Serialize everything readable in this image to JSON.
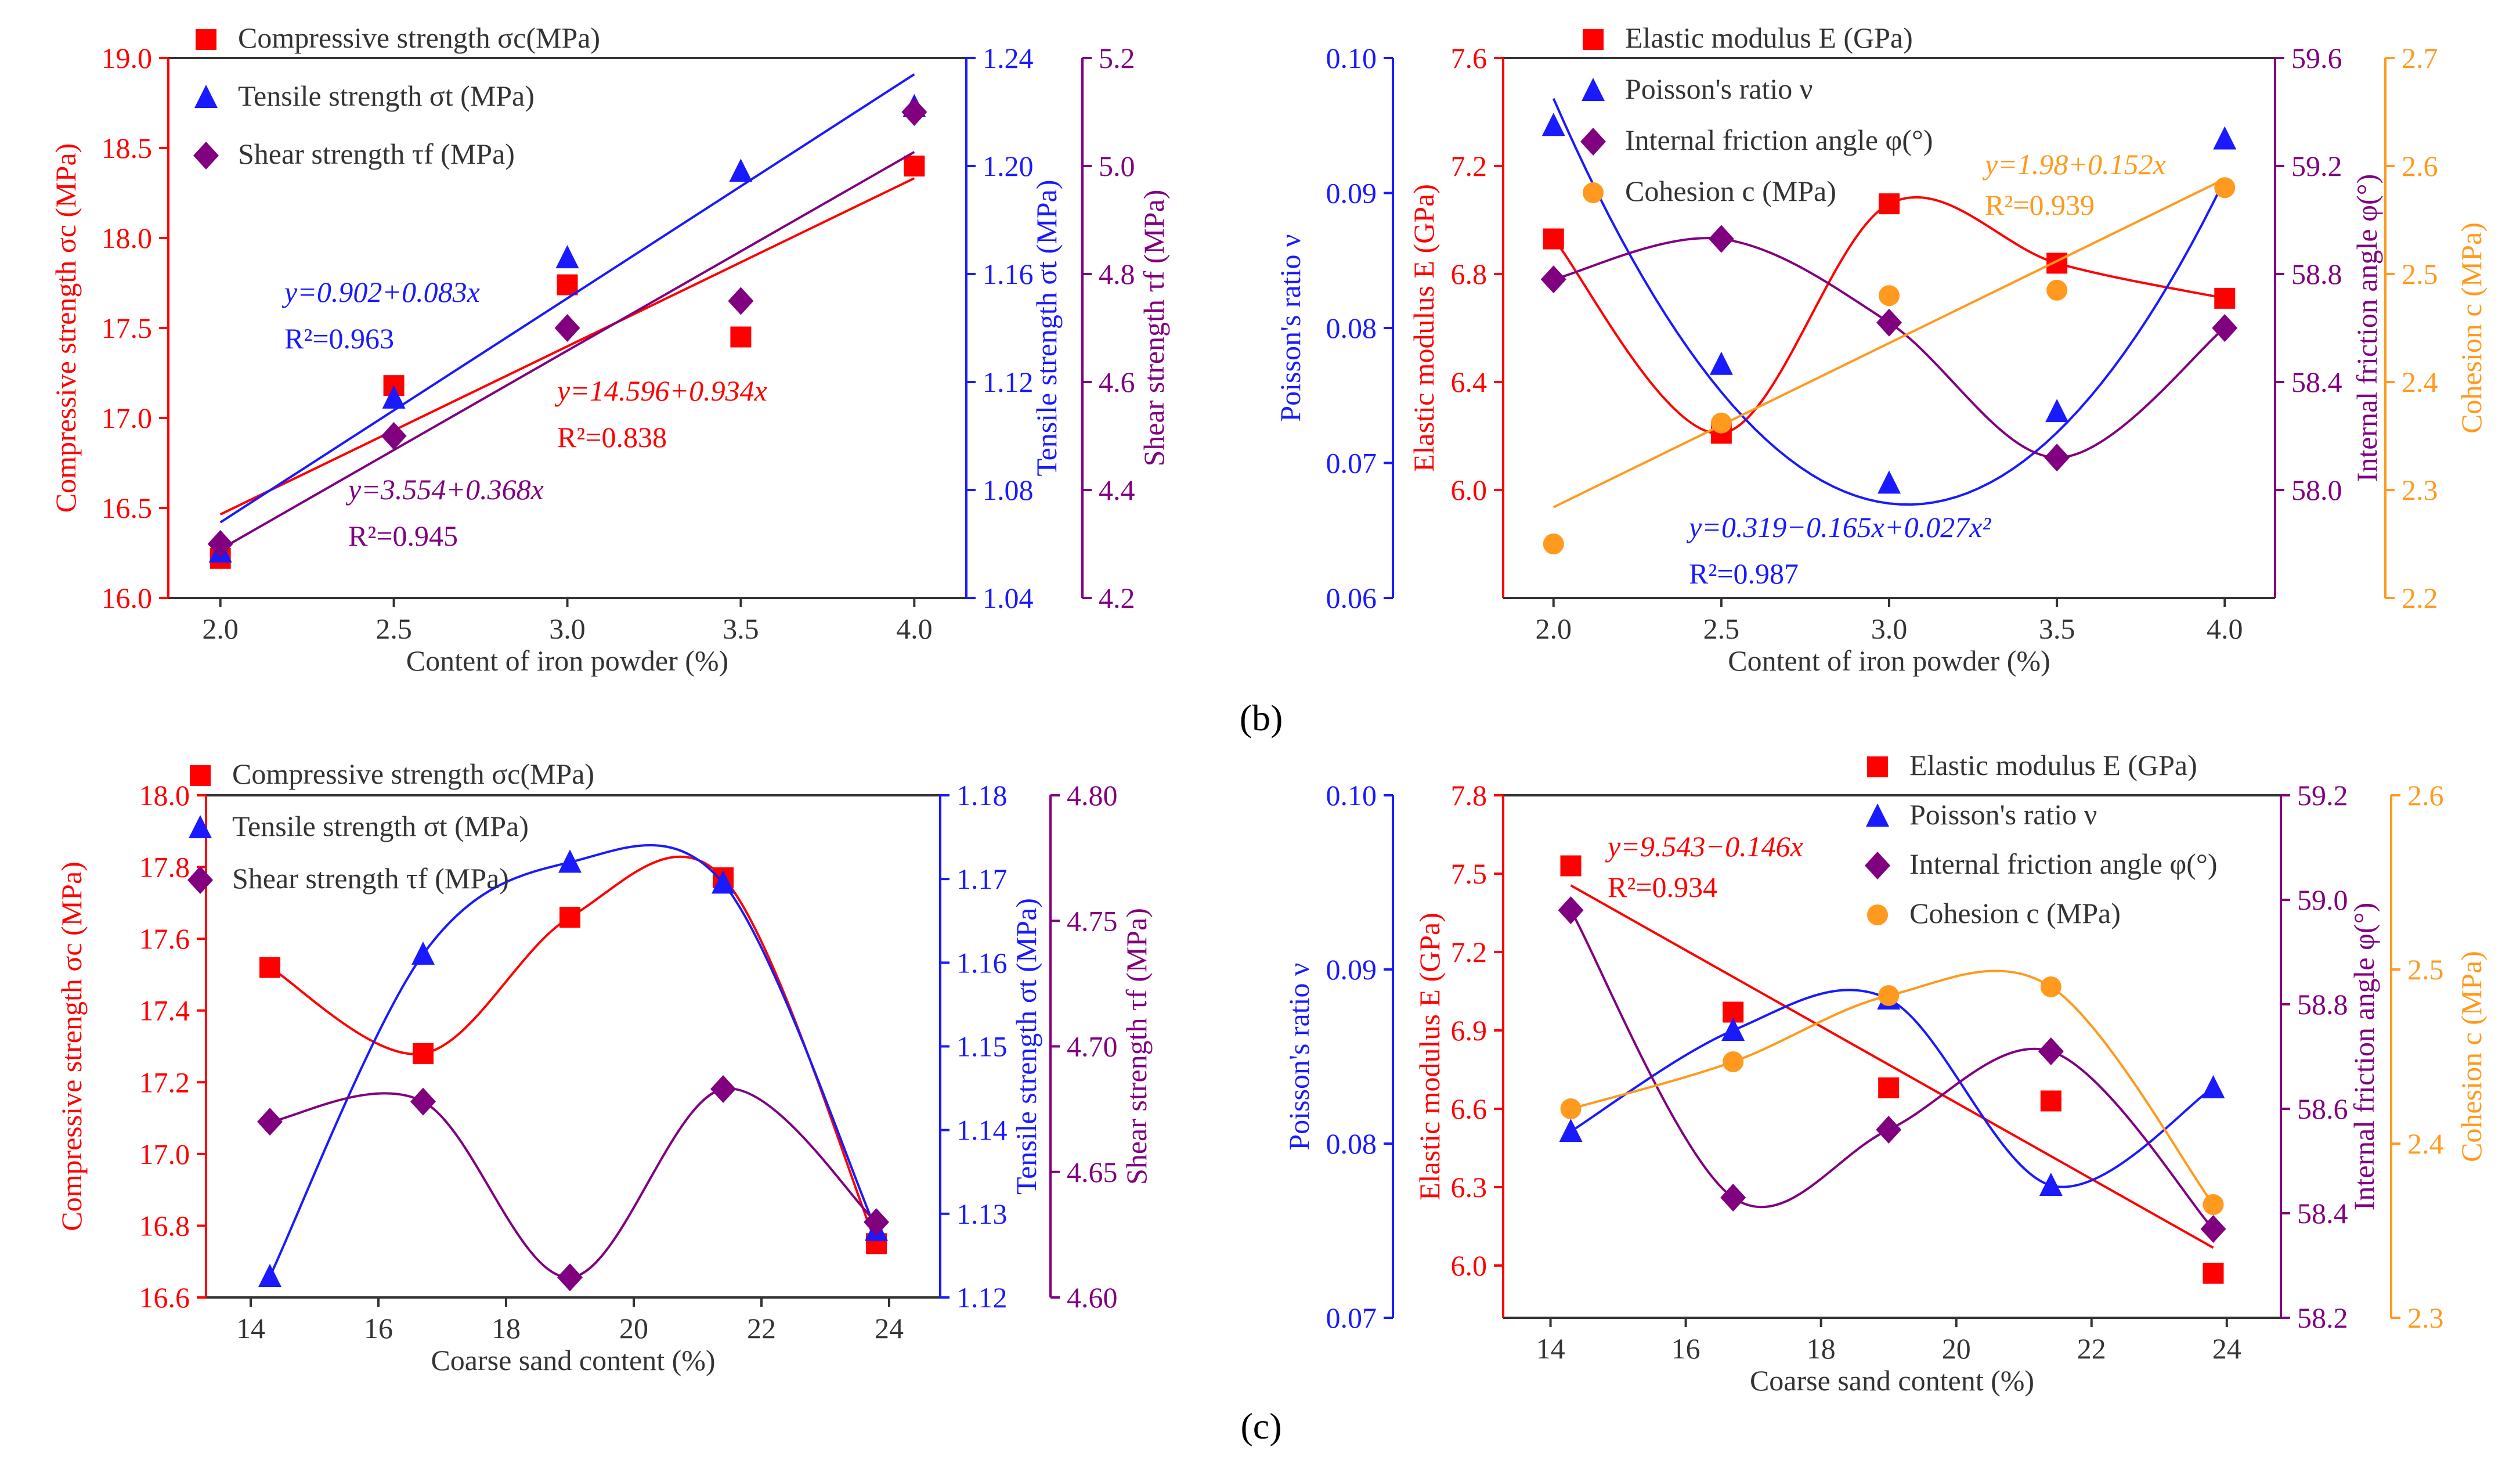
{
  "panel_labels": {
    "b": "(b)",
    "c": "(c)"
  },
  "colors": {
    "red": "#ff0000",
    "blue": "#1a1aff",
    "purple": "#800080",
    "orange": "#ff9a1e",
    "black": "#333333"
  },
  "chart_data": [
    {
      "id": "p1",
      "type": "scatter",
      "xlabel": "Content of iron powder  (%)",
      "x": [
        2.0,
        2.5,
        3.0,
        3.5,
        4.0
      ],
      "xlim": [
        1.85,
        4.15
      ],
      "xticks": [
        "2.0",
        "2.5",
        "3.0",
        "3.5",
        "4.0"
      ],
      "axes": [
        {
          "id": "a1",
          "side": "left",
          "offset": 0,
          "color": "#ff0000",
          "ylim": [
            16.0,
            19.0
          ],
          "ticks": [
            "16.0",
            "16.5",
            "17.0",
            "17.5",
            "18.0",
            "18.5",
            "19.0"
          ],
          "label": "Compressive strength σc (MPa)"
        },
        {
          "id": "a2",
          "side": "right",
          "offset": 0,
          "color": "#1a1aff",
          "ylim": [
            1.04,
            1.24
          ],
          "ticks": [
            "1.04",
            "1.08",
            "1.12",
            "1.16",
            "1.20",
            "1.24"
          ],
          "label": "Tensile strength σt (MPa)"
        },
        {
          "id": "a3",
          "side": "right",
          "offset": 1,
          "color": "#800080",
          "ylim": [
            4.2,
            5.2
          ],
          "ticks": [
            "4.2",
            "4.4",
            "4.6",
            "4.8",
            "5.0",
            "5.2"
          ],
          "label": "Shear strength τf (MPa)"
        }
      ],
      "series": [
        {
          "name": "Compressive strength σc(MPa)",
          "axis": 0,
          "marker": "square",
          "color": "#ff0000",
          "values": [
            16.22,
            17.18,
            17.74,
            17.45,
            18.4
          ],
          "fit": "linear",
          "coef": [
            14.596,
            0.934
          ]
        },
        {
          "name": "Tensile strength σt (MPa)",
          "axis": 1,
          "marker": "triangle",
          "color": "#1a1aff",
          "values": [
            1.057,
            1.114,
            1.166,
            1.198,
            1.222
          ],
          "fit": "linear",
          "coef": [
            0.902,
            0.083
          ]
        },
        {
          "name": "Shear strength τf (MPa)",
          "axis": 2,
          "marker": "diamond",
          "color": "#800080",
          "values": [
            4.3,
            4.5,
            4.7,
            4.75,
            5.1
          ],
          "fit": "linear",
          "coef": [
            3.554,
            0.368
          ]
        }
      ],
      "annotations": [
        {
          "lines": [
            "y=0.902+0.083x",
            "R²=0.963"
          ],
          "color": "#1a1aff"
        },
        {
          "lines": [
            "y=14.596+0.934x",
            "R²=0.838"
          ],
          "color": "#ff0000"
        },
        {
          "lines": [
            "y=3.554+0.368x",
            "R²=0.945"
          ],
          "color": "#800080"
        }
      ]
    },
    {
      "id": "p2",
      "type": "scatter",
      "xlabel": "Content of iron powder  (%)",
      "x": [
        2.0,
        2.5,
        3.0,
        3.5,
        4.0
      ],
      "xlim": [
        1.85,
        4.15
      ],
      "xticks": [
        "2.0",
        "2.5",
        "3.0",
        "3.5",
        "4.0"
      ],
      "axes": [
        {
          "id": "b1",
          "side": "left",
          "offset": 1,
          "color": "#1a1aff",
          "ylim": [
            0.06,
            0.1
          ],
          "ticks": [
            "0.06",
            "0.07",
            "0.08",
            "0.09",
            "0.10"
          ],
          "label": "Poisson's ratio ν"
        },
        {
          "id": "b2",
          "side": "left",
          "offset": 0,
          "color": "#ff0000",
          "ylim": [
            5.6,
            7.6
          ],
          "ticks": [
            "6.0",
            "6.4",
            "6.8",
            "7.2",
            "7.6"
          ],
          "label": "Elastic modulus E (GPa)"
        },
        {
          "id": "b3",
          "side": "right",
          "offset": 0,
          "color": "#800080",
          "ylim": [
            57.6,
            59.6
          ],
          "ticks": [
            "58.0",
            "58.4",
            "58.8",
            "59.2",
            "59.6"
          ],
          "label": "Internal friction angle φ(°)"
        },
        {
          "id": "b4",
          "side": "right",
          "offset": 1,
          "color": "#ff9a1e",
          "ylim": [
            2.2,
            2.7
          ],
          "ticks": [
            "2.2",
            "2.3",
            "2.4",
            "2.5",
            "2.6",
            "2.7"
          ],
          "label": "Cohesion c (MPa)"
        }
      ],
      "series": [
        {
          "name": "Elastic modulus E (GPa)",
          "axis": 1,
          "marker": "square",
          "color": "#ff0000",
          "values": [
            6.93,
            6.21,
            7.06,
            6.84,
            6.71
          ],
          "fit": "spline"
        },
        {
          "name": "Poisson's ratio ν",
          "axis": 0,
          "marker": "triangle",
          "color": "#1a1aff",
          "values": [
            0.095,
            0.0773,
            0.0685,
            0.0738,
            0.094
          ],
          "fit": "quadratic",
          "coef": [
            0.319,
            -0.165,
            0.027
          ]
        },
        {
          "name": "Internal friction angle φ(°)",
          "axis": 2,
          "marker": "diamond",
          "color": "#800080",
          "values": [
            58.78,
            58.93,
            58.62,
            58.12,
            58.6
          ],
          "fit": "spline"
        },
        {
          "name": "Cohesion c (MPa)",
          "axis": 3,
          "marker": "circle",
          "color": "#ff9a1e",
          "values": [
            2.25,
            2.362,
            2.48,
            2.485,
            2.58
          ],
          "fit": "linear",
          "coef": [
            1.98,
            0.152
          ]
        }
      ],
      "annotations": [
        {
          "lines": [
            "y=1.98+0.152x",
            "R²=0.939"
          ],
          "color": "#ff9a1e"
        },
        {
          "lines": [
            "y=0.319−0.165x+0.027x²",
            "R²=0.987"
          ],
          "color": "#1a1aff"
        }
      ]
    },
    {
      "id": "p3",
      "type": "scatter",
      "xlabel": "Coarse sand content  (%)",
      "x": [
        14.3,
        16.7,
        19.0,
        21.4,
        23.8
      ],
      "xlim": [
        13.3,
        24.8
      ],
      "xticks": [
        "14",
        "16",
        "18",
        "20",
        "22",
        "24"
      ],
      "xtickvals": [
        14,
        16,
        18,
        20,
        22,
        24
      ],
      "axes": [
        {
          "id": "c1",
          "side": "left",
          "offset": 0,
          "color": "#ff0000",
          "ylim": [
            16.6,
            18.0
          ],
          "ticks": [
            "16.6",
            "16.8",
            "17.0",
            "17.2",
            "17.4",
            "17.6",
            "17.8",
            "18.0"
          ],
          "label": "Compressive strength σc (MPa)"
        },
        {
          "id": "c2",
          "side": "right",
          "offset": 0,
          "color": "#1a1aff",
          "ylim": [
            1.12,
            1.18
          ],
          "ticks": [
            "1.12",
            "1.13",
            "1.14",
            "1.15",
            "1.16",
            "1.17",
            "1.18"
          ],
          "label": "Tensile strength σt (MPa)"
        },
        {
          "id": "c3",
          "side": "right",
          "offset": 1,
          "color": "#800080",
          "ylim": [
            4.6,
            4.8
          ],
          "ticks": [
            "4.60",
            "4.65",
            "4.70",
            "4.75",
            "4.80"
          ],
          "label": "Shear strength τf (MPa)"
        }
      ],
      "series": [
        {
          "name": "Compressive strength σc(MPa)",
          "axis": 0,
          "marker": "square",
          "color": "#ff0000",
          "values": [
            17.52,
            17.28,
            17.66,
            17.77,
            16.75
          ],
          "fit": "spline"
        },
        {
          "name": "Tensile strength σt (MPa)",
          "axis": 1,
          "marker": "triangle",
          "color": "#1a1aff",
          "values": [
            1.1225,
            1.161,
            1.172,
            1.1695,
            1.128
          ],
          "fit": "spline"
        },
        {
          "name": "Shear strength τf (MPa)",
          "axis": 2,
          "marker": "diamond",
          "color": "#800080",
          "values": [
            4.67,
            4.678,
            4.608,
            4.683,
            4.63
          ],
          "fit": "spline"
        }
      ],
      "annotations": []
    },
    {
      "id": "p4",
      "type": "scatter",
      "xlabel": "Coarse sand content  (%)",
      "x": [
        14.3,
        16.7,
        19.0,
        21.4,
        23.8
      ],
      "xlim": [
        13.3,
        24.8
      ],
      "xticks": [
        "14",
        "16",
        "18",
        "20",
        "22",
        "24"
      ],
      "xtickvals": [
        14,
        16,
        18,
        20,
        22,
        24
      ],
      "axes": [
        {
          "id": "d1",
          "side": "left",
          "offset": 1,
          "color": "#1a1aff",
          "ylim": [
            0.07,
            0.1
          ],
          "ticks": [
            "0.07",
            "0.08",
            "0.09",
            "0.10"
          ],
          "label": "Poisson's ratio ν"
        },
        {
          "id": "d2",
          "side": "left",
          "offset": 0,
          "color": "#ff0000",
          "ylim": [
            5.8,
            7.8
          ],
          "ticks": [
            "6.0",
            "6.3",
            "6.6",
            "6.9",
            "7.2",
            "7.5",
            "7.8"
          ],
          "label": "Elastic modulus E (GPa)"
        },
        {
          "id": "d3",
          "side": "right",
          "offset": 0,
          "color": "#800080",
          "ylim": [
            58.2,
            59.2
          ],
          "ticks": [
            "58.2",
            "58.4",
            "58.6",
            "58.8",
            "59.0",
            "59.2"
          ],
          "label": "Internal friction angle φ(°)"
        },
        {
          "id": "d4",
          "side": "right",
          "offset": 1,
          "color": "#ff9a1e",
          "ylim": [
            2.3,
            2.6
          ],
          "ticks": [
            "2.3",
            "2.4",
            "2.5",
            "2.6"
          ],
          "label": "Cohesion c (MPa)"
        }
      ],
      "series": [
        {
          "name": "Elastic modulus  E (GPa)",
          "axis": 1,
          "marker": "square",
          "color": "#ff0000",
          "values": [
            7.53,
            6.97,
            6.68,
            6.63,
            5.97
          ],
          "fit": "linear",
          "coef": [
            9.543,
            -0.146
          ]
        },
        {
          "name": "Poisson's ratio  ν",
          "axis": 0,
          "marker": "triangle",
          "color": "#1a1aff",
          "values": [
            0.0807,
            0.0865,
            0.0883,
            0.0776,
            0.0832
          ],
          "fit": "spline"
        },
        {
          "name": "Internal friction angle φ(°)",
          "axis": 2,
          "marker": "diamond",
          "color": "#800080",
          "values": [
            58.98,
            58.43,
            58.56,
            58.71,
            58.37
          ],
          "fit": "spline"
        },
        {
          "name": "Cohesion  c (MPa)",
          "axis": 3,
          "marker": "circle",
          "color": "#ff9a1e",
          "values": [
            2.42,
            2.447,
            2.485,
            2.49,
            2.365
          ],
          "fit": "spline"
        }
      ],
      "annotations": [
        {
          "lines": [
            "y=9.543−0.146x",
            "R²=0.934"
          ],
          "color": "#ff0000"
        }
      ]
    }
  ]
}
